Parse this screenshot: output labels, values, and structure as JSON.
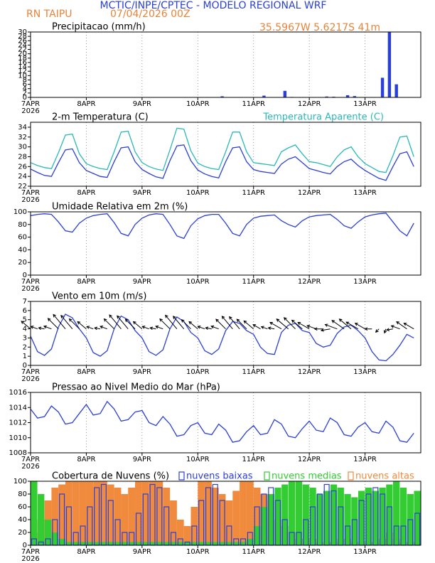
{
  "header": {
    "title": "MCTIC/INPE/CPTEC - MODELO REGIONAL WRF",
    "station": "RN TAIPU",
    "run": "07/04/2026 00Z",
    "location": "35.5967W 5.6217S 41m"
  },
  "chart_data": [
    {
      "type": "bar",
      "title": "Precipitacao (mm/h)",
      "color": "#2a3fd8",
      "x": [
        0,
        3,
        6,
        9,
        12,
        15,
        18,
        21,
        24,
        27,
        30,
        33,
        36,
        39,
        42,
        45,
        48,
        51,
        54,
        57,
        60,
        63,
        66,
        69,
        72,
        75,
        78,
        81,
        84,
        87,
        90,
        93,
        96,
        99,
        102,
        105,
        108,
        111,
        114,
        117,
        120,
        123,
        126,
        129,
        132,
        135,
        138,
        141,
        144,
        147,
        150,
        153,
        156,
        159,
        162,
        165
      ],
      "values": [
        0,
        0,
        0,
        0,
        0,
        0,
        0,
        0,
        0,
        0,
        0,
        0,
        0,
        0,
        0,
        0,
        0,
        0,
        0,
        0,
        0,
        0,
        0,
        0,
        0,
        0,
        0,
        0.5,
        0,
        0,
        0,
        0,
        0,
        0.8,
        0,
        0,
        3.0,
        0.2,
        0,
        0,
        0,
        0,
        0.4,
        0.3,
        0,
        1.0,
        0.6,
        0,
        0,
        0,
        9,
        30,
        6,
        0,
        0,
        0
      ],
      "xlim": [
        0,
        168
      ],
      "xticks": [
        {
          "value": 0,
          "label": "7APR"
        },
        {
          "value": 24,
          "label": "8APR"
        },
        {
          "value": 48,
          "label": "9APR"
        },
        {
          "value": 72,
          "label": "10APR"
        },
        {
          "value": 96,
          "label": "11APR"
        },
        {
          "value": 120,
          "label": "12APR"
        },
        {
          "value": 144,
          "label": "13APR"
        }
      ],
      "year": "2026",
      "ylim": [
        0,
        30
      ],
      "yticks": [
        0,
        2,
        4,
        6,
        8,
        10,
        12,
        14,
        16,
        18,
        20,
        22,
        24,
        26,
        28,
        30
      ],
      "grid": true
    },
    {
      "type": "line",
      "title": "2-m Temperatura (C)",
      "x": [
        0,
        3,
        6,
        9,
        12,
        15,
        18,
        21,
        24,
        27,
        30,
        33,
        36,
        39,
        42,
        45,
        48,
        51,
        54,
        57,
        60,
        63,
        66,
        69,
        72,
        75,
        78,
        81,
        84,
        87,
        90,
        93,
        96,
        99,
        102,
        105,
        108,
        111,
        114,
        117,
        120,
        123,
        126,
        129,
        132,
        135,
        138,
        141,
        144,
        147,
        150,
        153,
        156,
        159,
        162,
        165
      ],
      "series": [
        {
          "color": "#2a3fd8",
          "values": [
            25.5,
            24.8,
            24.2,
            24.0,
            26.8,
            29.4,
            29.6,
            26.8,
            25.2,
            24.6,
            24.0,
            23.8,
            27.0,
            29.8,
            30.0,
            27.0,
            25.4,
            24.6,
            23.9,
            23.6,
            27.2,
            30.2,
            30.4,
            27.2,
            25.3,
            24.5,
            24.0,
            23.7,
            27.0,
            29.8,
            30.0,
            27.0,
            25.4,
            25.0,
            24.8,
            24.6,
            26.5,
            27.5,
            28.0,
            26.8,
            25.6,
            25.2,
            24.8,
            24.5,
            26.0,
            27.0,
            27.5,
            26.2,
            25.2,
            24.4,
            23.6,
            23.2,
            26.0,
            28.6,
            29.0,
            26.0
          ]
        },
        {
          "name": "Temperatura Aparente (C)",
          "color": "#2ab8b8",
          "values": [
            26.8,
            26.2,
            25.8,
            25.6,
            28.8,
            32.4,
            32.6,
            28.6,
            26.6,
            26.0,
            25.6,
            25.4,
            29.0,
            33.0,
            33.2,
            29.0,
            26.8,
            26.0,
            25.5,
            25.2,
            29.4,
            33.8,
            33.6,
            29.2,
            26.7,
            26.0,
            25.6,
            25.4,
            29.0,
            33.0,
            33.0,
            29.0,
            26.8,
            26.6,
            26.4,
            26.2,
            29.0,
            29.8,
            30.4,
            28.6,
            27.0,
            26.8,
            26.4,
            26.0,
            28.0,
            29.4,
            30.0,
            28.0,
            26.6,
            25.8,
            25.0,
            24.8,
            28.2,
            32.0,
            32.2,
            28.0
          ]
        }
      ],
      "xlim": [
        0,
        168
      ],
      "xticks": [
        {
          "value": 0,
          "label": "7APR"
        },
        {
          "value": 24,
          "label": "8APR"
        },
        {
          "value": 48,
          "label": "9APR"
        },
        {
          "value": 72,
          "label": "10APR"
        },
        {
          "value": 96,
          "label": "11APR"
        },
        {
          "value": 120,
          "label": "12APR"
        },
        {
          "value": 144,
          "label": "13APR"
        }
      ],
      "year": "2026",
      "ylim": [
        22,
        35
      ],
      "yticks": [
        22,
        24,
        26,
        28,
        30,
        32,
        34
      ],
      "grid": true
    },
    {
      "type": "line",
      "title": "Umidade Relativa em 2m (%)",
      "color": "#2a3fd8",
      "x": [
        0,
        3,
        6,
        9,
        12,
        15,
        18,
        21,
        24,
        27,
        30,
        33,
        36,
        39,
        42,
        45,
        48,
        51,
        54,
        57,
        60,
        63,
        66,
        69,
        72,
        75,
        78,
        81,
        84,
        87,
        90,
        93,
        96,
        99,
        102,
        105,
        108,
        111,
        114,
        117,
        120,
        123,
        126,
        129,
        132,
        135,
        138,
        141,
        144,
        147,
        150,
        153,
        156,
        159,
        162,
        165
      ],
      "values": [
        94,
        96,
        97,
        96,
        84,
        70,
        68,
        82,
        90,
        94,
        96,
        97,
        83,
        66,
        62,
        80,
        90,
        95,
        97,
        96,
        80,
        62,
        58,
        78,
        89,
        94,
        96,
        96,
        82,
        66,
        62,
        80,
        90,
        93,
        94,
        95,
        86,
        80,
        76,
        86,
        92,
        94,
        95,
        96,
        88,
        78,
        74,
        84,
        92,
        95,
        97,
        98,
        84,
        70,
        62,
        82
      ],
      "xlim": [
        0,
        168
      ],
      "xticks": [
        {
          "value": 0,
          "label": "7APR"
        },
        {
          "value": 24,
          "label": "8APR"
        },
        {
          "value": 48,
          "label": "9APR"
        },
        {
          "value": 72,
          "label": "10APR"
        },
        {
          "value": 96,
          "label": "11APR"
        },
        {
          "value": 120,
          "label": "12APR"
        },
        {
          "value": 144,
          "label": "13APR"
        }
      ],
      "year": "2026",
      "ylim": [
        0,
        100
      ],
      "yticks": [
        0,
        20,
        40,
        60,
        80,
        100
      ],
      "grid": true
    },
    {
      "type": "line",
      "title": "Vento em 10m (m/s)",
      "color": "#2a3fd8",
      "x": [
        0,
        3,
        6,
        9,
        12,
        15,
        18,
        21,
        24,
        27,
        30,
        33,
        36,
        39,
        42,
        45,
        48,
        51,
        54,
        57,
        60,
        63,
        66,
        69,
        72,
        75,
        78,
        81,
        84,
        87,
        90,
        93,
        96,
        99,
        102,
        105,
        108,
        111,
        114,
        117,
        120,
        123,
        126,
        129,
        132,
        135,
        138,
        141,
        144,
        147,
        150,
        153,
        156,
        159,
        162,
        165
      ],
      "values": [
        3.2,
        1.5,
        1.1,
        1.8,
        4.2,
        5.6,
        5.2,
        4.0,
        3.0,
        1.4,
        1.0,
        1.6,
        4.0,
        5.4,
        5.0,
        3.8,
        3.0,
        1.5,
        1.1,
        1.7,
        4.0,
        5.3,
        4.8,
        3.6,
        3.0,
        1.6,
        1.2,
        1.8,
        3.8,
        4.8,
        4.6,
        3.8,
        3.4,
        2.0,
        1.3,
        1.2,
        3.6,
        4.4,
        4.6,
        3.8,
        3.6,
        2.4,
        2.0,
        2.2,
        3.5,
        4.2,
        4.4,
        3.8,
        3.0,
        1.5,
        0.6,
        0.5,
        1.2,
        2.2,
        3.4,
        3.0
      ],
      "direction": [
        130,
        110,
        100,
        110,
        135,
        140,
        140,
        135,
        130,
        110,
        100,
        110,
        135,
        140,
        140,
        135,
        130,
        110,
        100,
        110,
        135,
        140,
        140,
        135,
        130,
        110,
        100,
        110,
        135,
        140,
        140,
        135,
        130,
        120,
        110,
        100,
        120,
        130,
        135,
        130,
        120,
        110,
        90,
        80,
        110,
        125,
        130,
        120,
        120,
        90,
        45,
        20,
        80,
        110,
        125,
        120
      ],
      "xlim": [
        0,
        168
      ],
      "xticks": [
        {
          "value": 0,
          "label": "7APR"
        },
        {
          "value": 24,
          "label": "8APR"
        },
        {
          "value": 48,
          "label": "9APR"
        },
        {
          "value": 72,
          "label": "10APR"
        },
        {
          "value": 96,
          "label": "11APR"
        },
        {
          "value": 120,
          "label": "12APR"
        },
        {
          "value": 144,
          "label": "13APR"
        }
      ],
      "year": "2026",
      "ylim": [
        0,
        7
      ],
      "yticks": [
        0,
        1,
        2,
        3,
        4,
        5,
        6,
        7
      ],
      "grid": true
    },
    {
      "type": "line",
      "title": "Pressao ao Nivel Medio do Mar (hPa)",
      "color": "#2a3fd8",
      "x": [
        0,
        3,
        6,
        9,
        12,
        15,
        18,
        21,
        24,
        27,
        30,
        33,
        36,
        39,
        42,
        45,
        48,
        51,
        54,
        57,
        60,
        63,
        66,
        69,
        72,
        75,
        78,
        81,
        84,
        87,
        90,
        93,
        96,
        99,
        102,
        105,
        108,
        111,
        114,
        117,
        120,
        123,
        126,
        129,
        132,
        135,
        138,
        141,
        144,
        147,
        150,
        153,
        156,
        159,
        162,
        165
      ],
      "values": [
        1013.8,
        1012.6,
        1012.8,
        1014.2,
        1013.4,
        1011.8,
        1012.0,
        1013.2,
        1014.4,
        1013.0,
        1013.2,
        1014.8,
        1013.8,
        1012.2,
        1012.4,
        1013.4,
        1013.6,
        1012.0,
        1011.6,
        1012.8,
        1011.8,
        1010.2,
        1010.4,
        1011.6,
        1012.0,
        1010.6,
        1010.4,
        1011.8,
        1011.0,
        1009.4,
        1009.6,
        1010.8,
        1011.6,
        1010.4,
        1010.6,
        1012.4,
        1011.8,
        1010.2,
        1010.0,
        1011.2,
        1012.2,
        1011.0,
        1010.8,
        1012.6,
        1012.0,
        1010.4,
        1010.2,
        1011.4,
        1012.0,
        1010.8,
        1010.6,
        1012.2,
        1011.4,
        1009.6,
        1009.4,
        1010.6
      ],
      "xlim": [
        0,
        168
      ],
      "xticks": [
        {
          "value": 0,
          "label": "7APR"
        },
        {
          "value": 24,
          "label": "8APR"
        },
        {
          "value": 48,
          "label": "9APR"
        },
        {
          "value": 72,
          "label": "10APR"
        },
        {
          "value": 96,
          "label": "11APR"
        },
        {
          "value": 120,
          "label": "12APR"
        },
        {
          "value": 144,
          "label": "13APR"
        }
      ],
      "year": "2026",
      "ylim": [
        1008,
        1016
      ],
      "yticks": [
        1008,
        1010,
        1012,
        1014,
        1016
      ],
      "grid": true
    },
    {
      "type": "bar",
      "title": "Cobertura de Nuvens (%)",
      "legend": true,
      "x": [
        0,
        3,
        6,
        9,
        12,
        15,
        18,
        21,
        24,
        27,
        30,
        33,
        36,
        39,
        42,
        45,
        48,
        51,
        54,
        57,
        60,
        63,
        66,
        69,
        72,
        75,
        78,
        81,
        84,
        87,
        90,
        93,
        96,
        99,
        102,
        105,
        108,
        111,
        114,
        117,
        120,
        123,
        126,
        129,
        132,
        135,
        138,
        141,
        144,
        147,
        150,
        153,
        156,
        159,
        162,
        165
      ],
      "series": [
        {
          "name": "nuvens baixas",
          "color": "#2a3fd8",
          "style": "outline",
          "values": [
            10,
            5,
            10,
            40,
            80,
            60,
            20,
            30,
            60,
            90,
            95,
            70,
            40,
            20,
            20,
            50,
            80,
            95,
            90,
            60,
            20,
            10,
            5,
            30,
            70,
            90,
            95,
            70,
            30,
            10,
            10,
            20,
            60,
            80,
            90,
            70,
            40,
            20,
            20,
            40,
            60,
            80,
            95,
            85,
            60,
            30,
            40,
            70,
            80,
            90,
            80,
            60,
            30,
            30,
            40,
            50
          ]
        },
        {
          "name": "nuvens medias",
          "color": "#33cc33",
          "style": "fill",
          "values": [
            100,
            80,
            40,
            20,
            10,
            5,
            5,
            5,
            5,
            5,
            5,
            5,
            5,
            5,
            5,
            5,
            5,
            5,
            5,
            5,
            5,
            5,
            5,
            5,
            5,
            5,
            5,
            5,
            5,
            5,
            5,
            10,
            30,
            60,
            80,
            90,
            95,
            100,
            100,
            95,
            90,
            80,
            85,
            95,
            90,
            80,
            75,
            85,
            90,
            85,
            90,
            95,
            100,
            90,
            80,
            85
          ]
        },
        {
          "name": "nuvens altas",
          "color": "#f08a3c",
          "style": "fill",
          "values": [
            20,
            40,
            70,
            90,
            95,
            100,
            100,
            100,
            100,
            100,
            100,
            95,
            90,
            80,
            90,
            100,
            100,
            100,
            100,
            90,
            70,
            40,
            30,
            60,
            100,
            100,
            90,
            80,
            70,
            85,
            100,
            100,
            90,
            80,
            70,
            40,
            30,
            20,
            10,
            10,
            10,
            5,
            5,
            5,
            10,
            10,
            5,
            5,
            5,
            5,
            10,
            20,
            10,
            5,
            5,
            5
          ]
        }
      ],
      "xlim": [
        0,
        168
      ],
      "xticks": [
        {
          "value": 0,
          "label": "7APR"
        },
        {
          "value": 24,
          "label": "8APR"
        },
        {
          "value": 48,
          "label": "9APR"
        },
        {
          "value": 72,
          "label": "10APR"
        },
        {
          "value": 96,
          "label": "11APR"
        },
        {
          "value": 120,
          "label": "12APR"
        },
        {
          "value": 144,
          "label": "13APR"
        }
      ],
      "year": "2026",
      "ylim": [
        0,
        100
      ],
      "yticks": [
        0,
        20,
        40,
        60,
        80,
        100
      ],
      "grid": true
    }
  ]
}
